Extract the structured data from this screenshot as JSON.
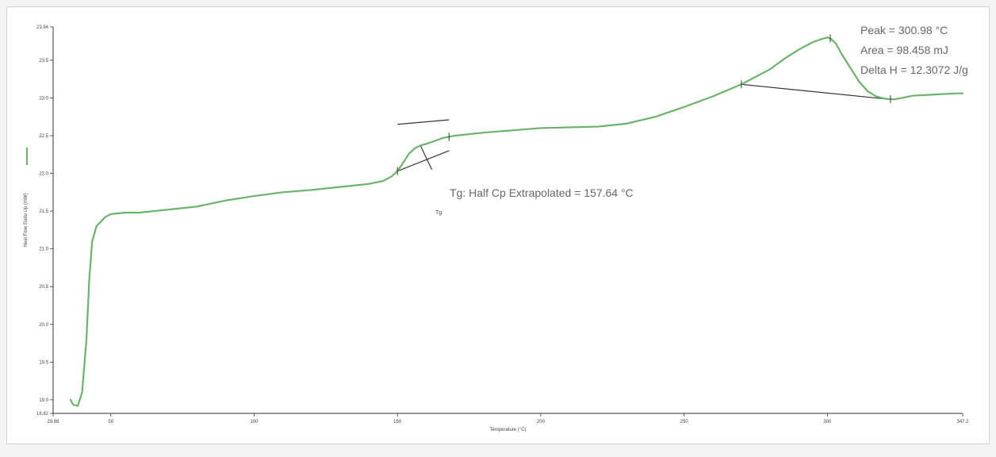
{
  "chart_data": {
    "type": "line",
    "title": "",
    "xlabel": "Temperature (°C)",
    "ylabel": "Heat Flow Endo Up (mW)",
    "x_ticks": [
      "29.88",
      "50",
      "100",
      "150",
      "200",
      "250",
      "300",
      "347.2"
    ],
    "y_ticks": [
      "18.82",
      "19.0",
      "19.5",
      "20.0",
      "20.5",
      "21.0",
      "21.5",
      "22.0",
      "22.5",
      "23.0",
      "23.5",
      "23.94"
    ],
    "xlim": [
      29.88,
      347.2
    ],
    "ylim": [
      18.82,
      23.94
    ],
    "grid": false,
    "legend": "none",
    "series": [
      {
        "color": "#6ab36a",
        "x": [
          36.0,
          36.6,
          37.2,
          38.5,
          40.0,
          41.5,
          42.5,
          43.5,
          45.0,
          48.0,
          50.0,
          55.0,
          60.0,
          70.0,
          80.0,
          90.0,
          100.0,
          110.0,
          120.0,
          130.0,
          140.0,
          145.0,
          148.0,
          150.0,
          152.0,
          154.0,
          156.0,
          158.0,
          160.0,
          163.0,
          166.0,
          170.0,
          180.0,
          190.0,
          200.0,
          210.0,
          220.0,
          230.0,
          240.0,
          250.0,
          260.0,
          265.0,
          270.0,
          275.0,
          280.0,
          285.0,
          290.0,
          295.0,
          298.0,
          300.0,
          301.0,
          303.0,
          305.0,
          308.0,
          311.0,
          314.0,
          317.0,
          320.0,
          323.0,
          326.0,
          330.0,
          335.0,
          340.0,
          345.0,
          347.2
        ],
        "y": [
          19.0,
          18.95,
          18.93,
          18.92,
          19.1,
          19.8,
          20.6,
          21.1,
          21.3,
          21.42,
          21.46,
          21.48,
          21.48,
          21.52,
          21.56,
          21.64,
          21.7,
          21.75,
          21.78,
          21.82,
          21.86,
          21.9,
          21.96,
          22.03,
          22.14,
          22.26,
          22.33,
          22.37,
          22.39,
          22.43,
          22.47,
          22.5,
          22.54,
          22.57,
          22.6,
          22.61,
          22.62,
          22.66,
          22.75,
          22.88,
          23.02,
          23.1,
          23.18,
          23.28,
          23.38,
          23.52,
          23.64,
          23.74,
          23.78,
          23.8,
          23.79,
          23.72,
          23.58,
          23.4,
          23.22,
          23.09,
          23.02,
          22.99,
          22.98,
          23.0,
          23.03,
          23.04,
          23.05,
          23.06,
          23.06
        ]
      }
    ],
    "annotations": {
      "peak_lines": [
        "Peak = 300.98 °C",
        "Area = 98.458 mJ",
        "Delta H = 12.3072 J/g"
      ],
      "tg_text": "Tg: Half Cp Extrapolated = 157.64 °C",
      "tg_label": "Tg"
    }
  }
}
